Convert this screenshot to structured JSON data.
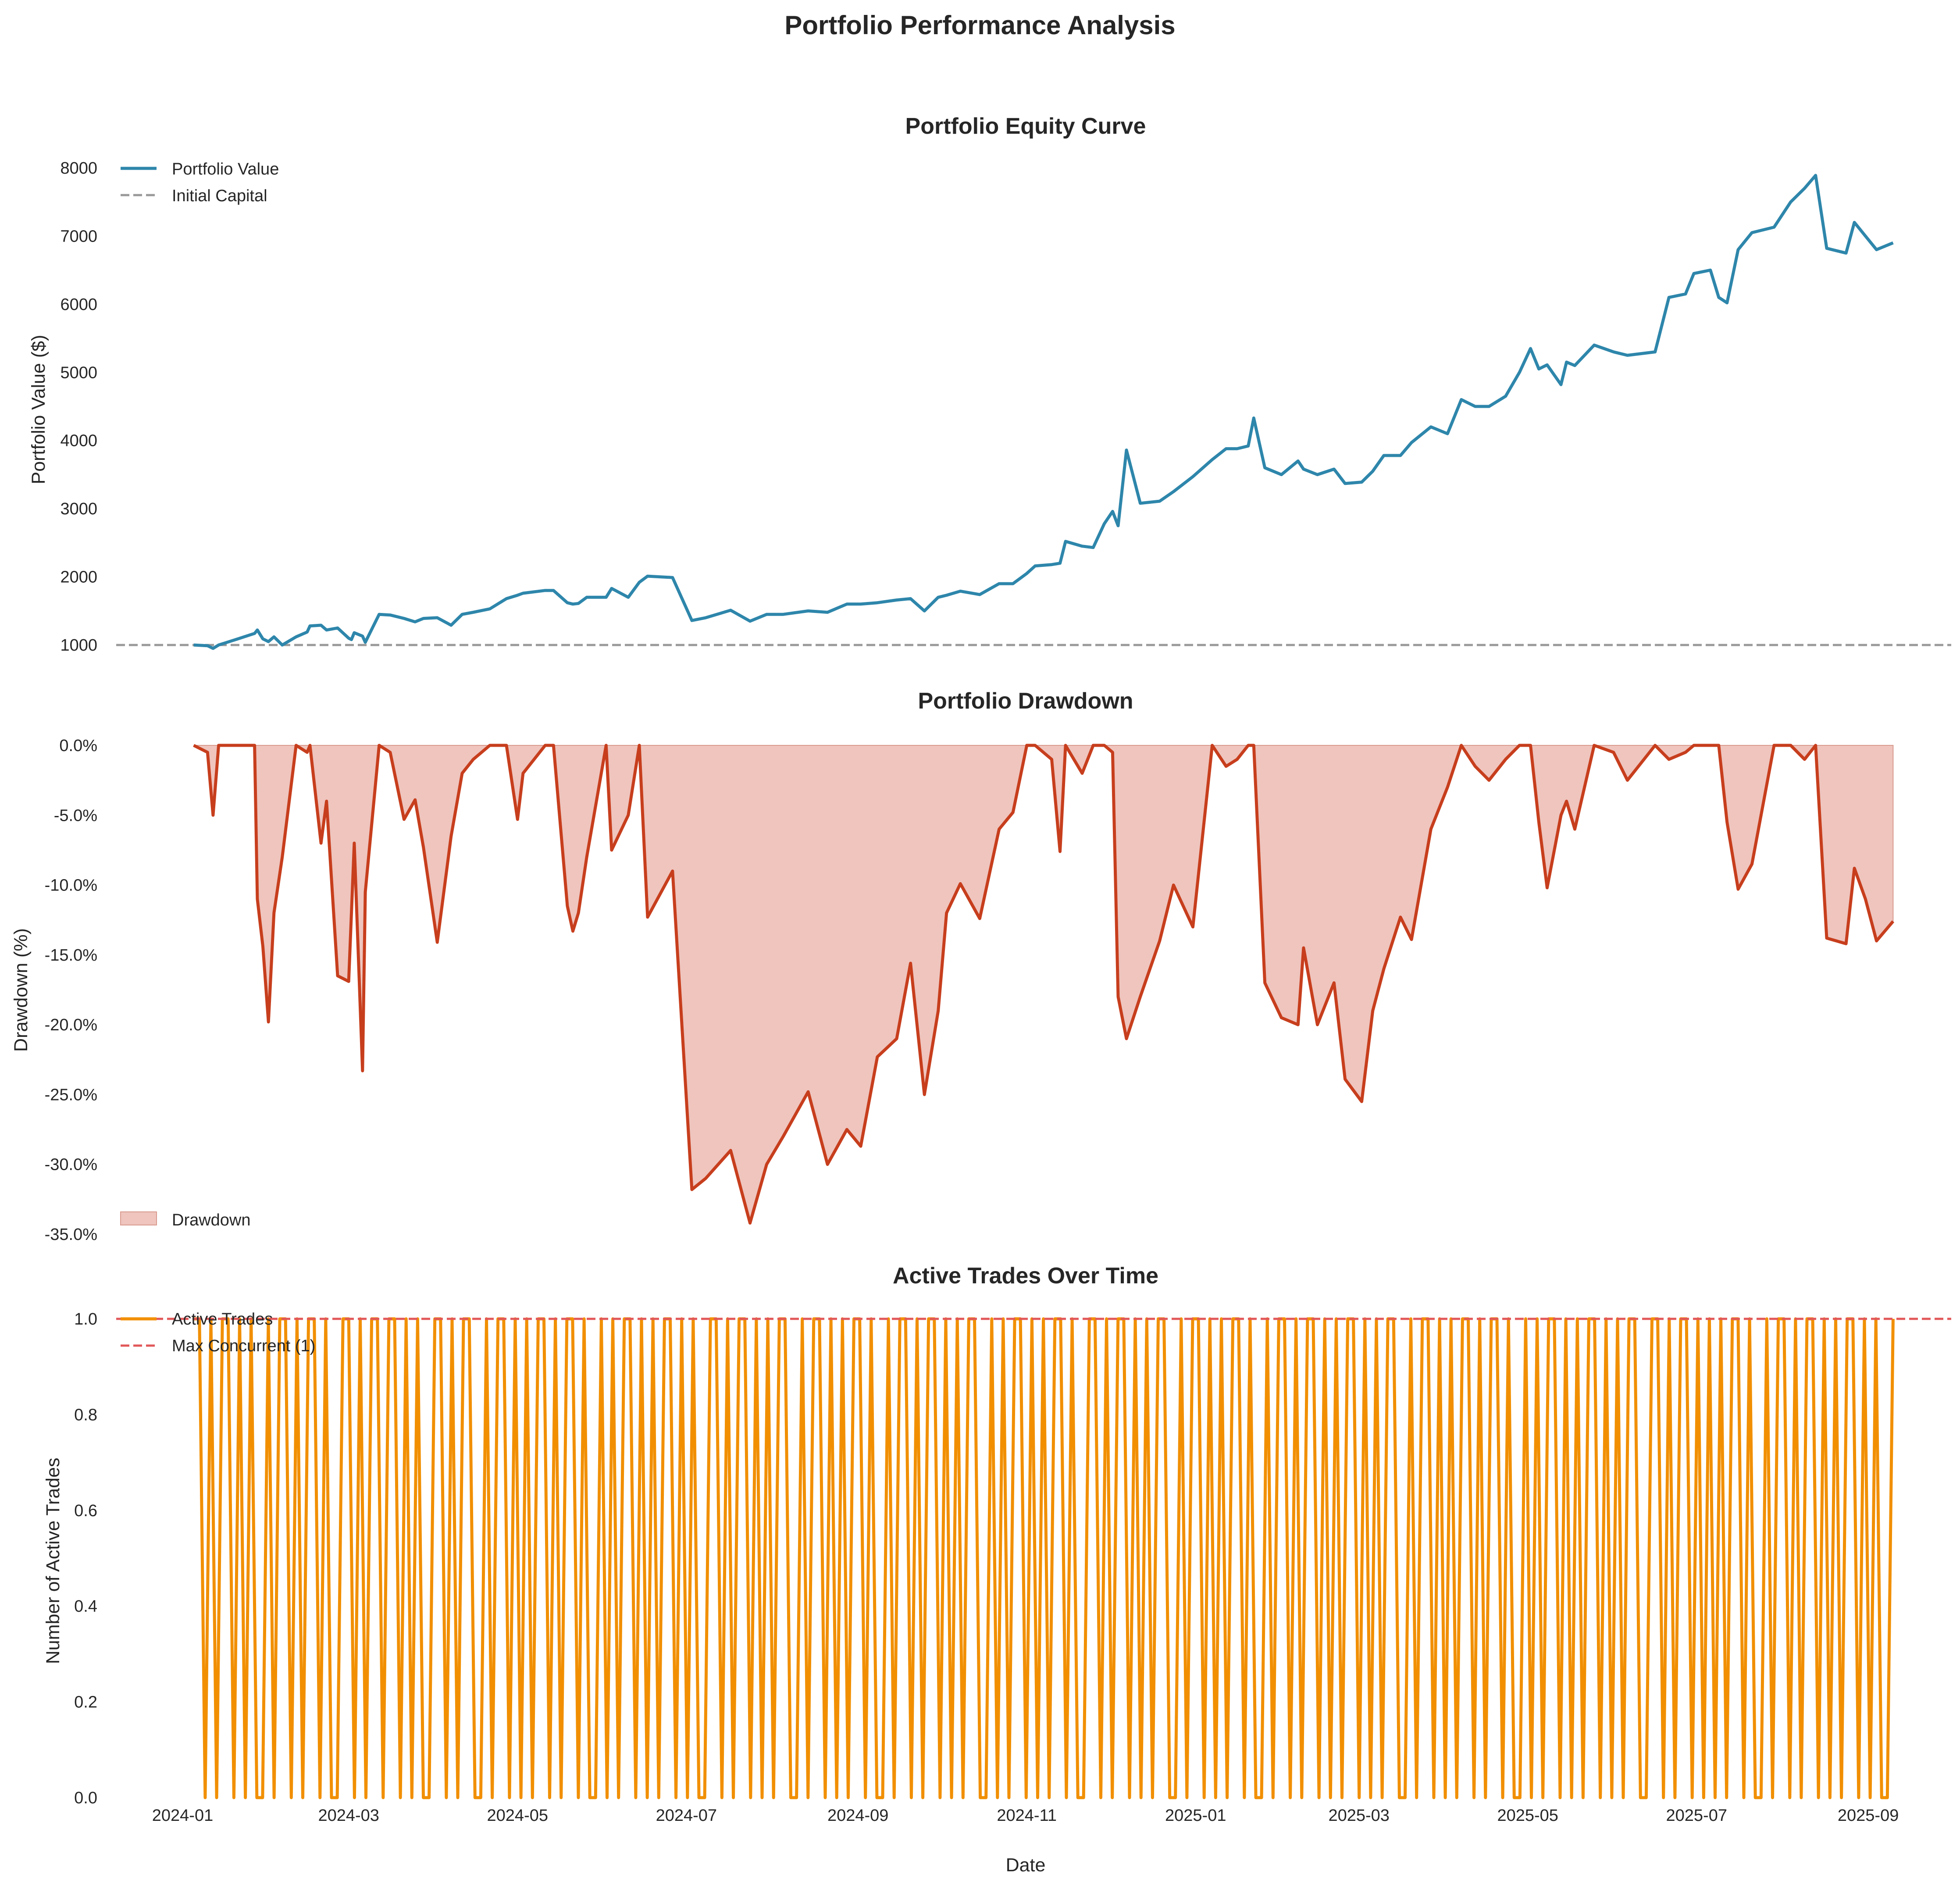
{
  "figure_title": "Portfolio Performance Analysis",
  "chart_data": [
    {
      "type": "line",
      "title": "Portfolio Equity Curve",
      "xlabel": "",
      "ylabel": "Portfolio Value ($)",
      "yticks": [
        "1000",
        "2000",
        "3000",
        "4000",
        "5000",
        "6000",
        "7000",
        "8000"
      ],
      "ylim": [
        930,
        8160
      ],
      "xlim": [
        "2023-12-08",
        "2025-10-01"
      ],
      "grid": false,
      "legend_position": "upper left",
      "colors": {
        "line": "#2E86AB",
        "reference": "#999999"
      },
      "series": [
        {
          "name": "Portfolio Value",
          "x": [
            "2024-01-05",
            "2024-01-10",
            "2024-01-12",
            "2024-01-14",
            "2024-01-21",
            "2024-01-27",
            "2024-01-28",
            "2024-01-30",
            "2024-02-01",
            "2024-02-03",
            "2024-02-06",
            "2024-02-11",
            "2024-02-15",
            "2024-02-16",
            "2024-02-20",
            "2024-02-22",
            "2024-02-26",
            "2024-03-01",
            "2024-03-02",
            "2024-03-03",
            "2024-03-06",
            "2024-03-07",
            "2024-03-12",
            "2024-03-16",
            "2024-03-21",
            "2024-03-25",
            "2024-03-28",
            "2024-04-02",
            "2024-04-07",
            "2024-04-11",
            "2024-04-15",
            "2024-04-21",
            "2024-04-27",
            "2024-05-01",
            "2024-05-03",
            "2024-05-11",
            "2024-05-14",
            "2024-05-19",
            "2024-05-21",
            "2024-05-23",
            "2024-05-26",
            "2024-06-02",
            "2024-06-04",
            "2024-06-10",
            "2024-06-14",
            "2024-06-17",
            "2024-06-26",
            "2024-07-03",
            "2024-07-08",
            "2024-07-17",
            "2024-07-24",
            "2024-07-30",
            "2024-08-05",
            "2024-08-14",
            "2024-08-21",
            "2024-08-28",
            "2024-09-02",
            "2024-09-08",
            "2024-09-15",
            "2024-09-20",
            "2024-09-25",
            "2024-09-30",
            "2024-10-03",
            "2024-10-08",
            "2024-10-15",
            "2024-10-22",
            "2024-10-27",
            "2024-11-01",
            "2024-11-04",
            "2024-11-10",
            "2024-11-13",
            "2024-11-15",
            "2024-11-21",
            "2024-11-25",
            "2024-11-29",
            "2024-12-02",
            "2024-12-04",
            "2024-12-07",
            "2024-12-12",
            "2024-12-19",
            "2024-12-24",
            "2024-12-31",
            "2025-01-07",
            "2025-01-12",
            "2025-01-16",
            "2025-01-20",
            "2025-01-22",
            "2025-01-26",
            "2025-02-01",
            "2025-02-07",
            "2025-02-09",
            "2025-02-14",
            "2025-02-20",
            "2025-02-24",
            "2025-03-02",
            "2025-03-06",
            "2025-03-10",
            "2025-03-16",
            "2025-03-20",
            "2025-03-27",
            "2025-04-02",
            "2025-04-07",
            "2025-04-12",
            "2025-04-17",
            "2025-04-23",
            "2025-04-28",
            "2025-05-02",
            "2025-05-05",
            "2025-05-08",
            "2025-05-13",
            "2025-05-15",
            "2025-05-18",
            "2025-05-25",
            "2025-06-01",
            "2025-06-06",
            "2025-06-16",
            "2025-06-21",
            "2025-06-27",
            "2025-06-30",
            "2025-07-06",
            "2025-07-09",
            "2025-07-12",
            "2025-07-16",
            "2025-07-21",
            "2025-07-29",
            "2025-08-04",
            "2025-08-09",
            "2025-08-13",
            "2025-08-17",
            "2025-08-24",
            "2025-08-27",
            "2025-08-31",
            "2025-09-04",
            "2025-09-10"
          ],
          "y": [
            1000,
            990,
            950,
            1000,
            1090,
            1170,
            1220,
            1090,
            1050,
            1120,
            1000,
            1120,
            1190,
            1280,
            1290,
            1220,
            1250,
            1100,
            1080,
            1180,
            1130,
            1040,
            1450,
            1440,
            1390,
            1340,
            1390,
            1400,
            1290,
            1450,
            1480,
            1530,
            1680,
            1730,
            1760,
            1800,
            1800,
            1620,
            1600,
            1610,
            1700,
            1700,
            1830,
            1700,
            1920,
            2010,
            1990,
            1360,
            1400,
            1510,
            1350,
            1450,
            1450,
            1500,
            1480,
            1600,
            1600,
            1620,
            1660,
            1680,
            1500,
            1700,
            1730,
            1790,
            1740,
            1900,
            1900,
            2050,
            2160,
            2180,
            2200,
            2520,
            2450,
            2430,
            2780,
            2960,
            2750,
            3860,
            3080,
            3110,
            3250,
            3470,
            3720,
            3880,
            3880,
            3920,
            4330,
            3600,
            3500,
            3700,
            3580,
            3500,
            3580,
            3370,
            3390,
            3550,
            3780,
            3780,
            3970,
            4200,
            4100,
            4600,
            4500,
            4500,
            4650,
            5000,
            5350,
            5050,
            5110,
            4820,
            5150,
            5100,
            5400,
            5300,
            5250,
            5300,
            6100,
            6150,
            6450,
            6500,
            6100,
            6020,
            6800,
            7050,
            7130,
            7500,
            7700,
            7890,
            6820,
            6750,
            7200,
            7000,
            6800,
            6900
          ]
        },
        {
          "name": "Initial Capital",
          "y": 1000
        }
      ]
    },
    {
      "type": "area",
      "title": "Portfolio Drawdown",
      "xlabel": "",
      "ylabel": "Drawdown (%)",
      "yticks": [
        "0.0%",
        "-5.0%",
        "-10.0%",
        "-15.0%",
        "-20.0%",
        "-25.0%",
        "-30.0%",
        "-35.0%"
      ],
      "ylim": [
        -35,
        0
      ],
      "xlim": [
        "2023-12-08",
        "2025-10-01"
      ],
      "grid": false,
      "legend_position": "lower left",
      "colors": {
        "line": "#C73E1D",
        "fill": "#EFC5BE"
      },
      "series": [
        {
          "name": "Drawdown",
          "x": [
            "2024-01-05",
            "2024-01-10",
            "2024-01-12",
            "2024-01-14",
            "2024-01-21",
            "2024-01-27",
            "2024-01-28",
            "2024-01-30",
            "2024-02-01",
            "2024-02-03",
            "2024-02-06",
            "2024-02-11",
            "2024-02-15",
            "2024-02-16",
            "2024-02-20",
            "2024-02-22",
            "2024-02-26",
            "2024-03-01",
            "2024-03-02",
            "2024-03-03",
            "2024-03-06",
            "2024-03-07",
            "2024-03-12",
            "2024-03-16",
            "2024-03-21",
            "2024-03-25",
            "2024-03-28",
            "2024-04-02",
            "2024-04-07",
            "2024-04-11",
            "2024-04-15",
            "2024-04-21",
            "2024-04-27",
            "2024-05-01",
            "2024-05-03",
            "2024-05-11",
            "2024-05-14",
            "2024-05-19",
            "2024-05-21",
            "2024-05-23",
            "2024-05-26",
            "2024-06-02",
            "2024-06-04",
            "2024-06-10",
            "2024-06-14",
            "2024-06-17",
            "2024-06-26",
            "2024-07-03",
            "2024-07-08",
            "2024-07-17",
            "2024-07-24",
            "2024-07-30",
            "2024-08-05",
            "2024-08-14",
            "2024-08-21",
            "2024-08-28",
            "2024-09-02",
            "2024-09-08",
            "2024-09-15",
            "2024-09-20",
            "2024-09-25",
            "2024-09-30",
            "2024-10-03",
            "2024-10-08",
            "2024-10-15",
            "2024-10-22",
            "2024-10-27",
            "2024-11-01",
            "2024-11-04",
            "2024-11-10",
            "2024-11-13",
            "2024-11-15",
            "2024-11-21",
            "2024-11-25",
            "2024-11-29",
            "2024-12-02",
            "2024-12-04",
            "2024-12-07",
            "2024-12-12",
            "2024-12-19",
            "2024-12-24",
            "2024-12-31",
            "2025-01-07",
            "2025-01-12",
            "2025-01-16",
            "2025-01-20",
            "2025-01-22",
            "2025-01-26",
            "2025-02-01",
            "2025-02-07",
            "2025-02-09",
            "2025-02-14",
            "2025-02-20",
            "2025-02-24",
            "2025-03-02",
            "2025-03-06",
            "2025-03-10",
            "2025-03-16",
            "2025-03-20",
            "2025-03-27",
            "2025-04-02",
            "2025-04-07",
            "2025-04-12",
            "2025-04-17",
            "2025-04-23",
            "2025-04-28",
            "2025-05-02",
            "2025-05-05",
            "2025-05-08",
            "2025-05-13",
            "2025-05-15",
            "2025-05-18",
            "2025-05-25",
            "2025-06-01",
            "2025-06-06",
            "2025-06-16",
            "2025-06-21",
            "2025-06-27",
            "2025-06-30",
            "2025-07-06",
            "2025-07-09",
            "2025-07-12",
            "2025-07-16",
            "2025-07-21",
            "2025-07-29",
            "2025-08-04",
            "2025-08-09",
            "2025-08-13",
            "2025-08-17",
            "2025-08-24",
            "2025-08-27",
            "2025-08-31",
            "2025-09-04",
            "2025-09-10"
          ],
          "y": [
            0,
            -0.5,
            -5,
            0,
            0,
            0,
            -11,
            -14.4,
            -19.8,
            -12,
            -8,
            0,
            -0.5,
            0,
            -7,
            -4,
            -16.5,
            -16.9,
            -12,
            -7,
            -23.3,
            -10.5,
            0,
            -0.5,
            -5.3,
            -3.9,
            -7.3,
            -14.1,
            -6.5,
            -2,
            -1,
            0,
            0,
            -5.3,
            -2,
            0,
            0,
            -11.5,
            -13.3,
            -12,
            -8,
            0,
            -7.5,
            -5,
            0,
            -12.3,
            -9,
            -31.8,
            -31,
            -29,
            -34.2,
            -30,
            -28,
            -24.8,
            -30,
            -27.5,
            -28.7,
            -22.3,
            -21,
            -15.6,
            -25,
            -19,
            -12,
            -9.9,
            -12.4,
            -6,
            -4.8,
            0,
            0,
            -1,
            -7.6,
            0,
            -2,
            0,
            0,
            -0.5,
            -18,
            -21,
            -18,
            -14,
            -10,
            -13,
            0,
            -1.5,
            -1,
            0,
            0,
            -17,
            -19.5,
            -20,
            -14.5,
            -20,
            -17,
            -23.9,
            -25.5,
            -19,
            -16,
            -12.3,
            -13.9,
            -6,
            -3,
            0,
            -1.5,
            -2.5,
            -1,
            0,
            0,
            -5.5,
            -10.2,
            -5,
            -4,
            -6,
            0,
            -0.5,
            -2.5,
            0,
            -1,
            -0.5,
            0,
            0,
            0,
            -5.5,
            -10.3,
            -8.5,
            0,
            0,
            -1,
            0,
            -13.8,
            -14.2,
            -8.8,
            -11,
            -14,
            -12.6
          ]
        }
      ]
    },
    {
      "type": "line",
      "title": "Active Trades Over Time",
      "xlabel": "Date",
      "ylabel": "Number of Active Trades",
      "yticks": [
        "0.0",
        "0.2",
        "0.4",
        "0.6",
        "0.8",
        "1.0"
      ],
      "ylim": [
        0,
        1
      ],
      "xlim": [
        "2023-12-08",
        "2025-10-01"
      ],
      "xticks": [
        "2024-01",
        "2024-03",
        "2024-05",
        "2024-07",
        "2024-09",
        "2024-11",
        "2025-01",
        "2025-03",
        "2025-05",
        "2025-07",
        "2025-09"
      ],
      "grid": false,
      "legend_position": "upper left",
      "colors": {
        "line": "#F18F01",
        "reference": "#E15759"
      },
      "series": [
        {
          "name": "Active Trades",
          "x_start": "2024-01-05",
          "x_end": "2025-09-10",
          "y": [
            1,
            1,
            0,
            1,
            0,
            1,
            1,
            0,
            1,
            0,
            1,
            0,
            0,
            1,
            0,
            1,
            1,
            0,
            1,
            0,
            1,
            1,
            0,
            1,
            0,
            0,
            1,
            1,
            0,
            1,
            0,
            1,
            1,
            0,
            1,
            1,
            0,
            1,
            0,
            1,
            0,
            0,
            1,
            1,
            0,
            1,
            0,
            1,
            1,
            0,
            0,
            1,
            0,
            1,
            1,
            0,
            1,
            0,
            1,
            0,
            1,
            1,
            0,
            1,
            0,
            1,
            1,
            0,
            1,
            0,
            0,
            1,
            0,
            1,
            0,
            1,
            1,
            0,
            1,
            0,
            1,
            0,
            1,
            1,
            0,
            1,
            0,
            1,
            0,
            0,
            1,
            1,
            0,
            1,
            0,
            1,
            1,
            0,
            1,
            0,
            1,
            0,
            1,
            1,
            0,
            0,
            1,
            0,
            1,
            1,
            0,
            1,
            0,
            1,
            0,
            1,
            1,
            0,
            1,
            0,
            0,
            1,
            0,
            1,
            1,
            0,
            1,
            0,
            1,
            1,
            0,
            1,
            0,
            1,
            0,
            1,
            1,
            0,
            0,
            1,
            0,
            1,
            0,
            1,
            1,
            0,
            1,
            0,
            1,
            0,
            1,
            1,
            0,
            1,
            0,
            0,
            1,
            1,
            0,
            1,
            0,
            1,
            1,
            0,
            1,
            0,
            1,
            0,
            1,
            1,
            0,
            0,
            1,
            0,
            1,
            1,
            0,
            1,
            0,
            1,
            0,
            1,
            1,
            0,
            1,
            0,
            0,
            1,
            0,
            1,
            1,
            0,
            1,
            0,
            1,
            1,
            0,
            1,
            0,
            1,
            0,
            1,
            1,
            0,
            1,
            0,
            1,
            0,
            1,
            1,
            0,
            0,
            1,
            0,
            1,
            1,
            0,
            1,
            0,
            1,
            0,
            1,
            1,
            0,
            1,
            0,
            1,
            1,
            0,
            1,
            0,
            0,
            1,
            0,
            1,
            0,
            1,
            1,
            0,
            1,
            0,
            1,
            0,
            1,
            1,
            0,
            1,
            0,
            1,
            0,
            1,
            1,
            0,
            0,
            1,
            1,
            0,
            1,
            0,
            1,
            1,
            0,
            1,
            0,
            1,
            0,
            1,
            0,
            1,
            1,
            0,
            1,
            0,
            0,
            1,
            0,
            1,
            1,
            0,
            1,
            0,
            1,
            1,
            0,
            1,
            0,
            1,
            0,
            1,
            1,
            0,
            1,
            0,
            1,
            0,
            0,
            1
          ]
        },
        {
          "name": "Max Concurrent (1)",
          "y": 1
        }
      ]
    }
  ]
}
